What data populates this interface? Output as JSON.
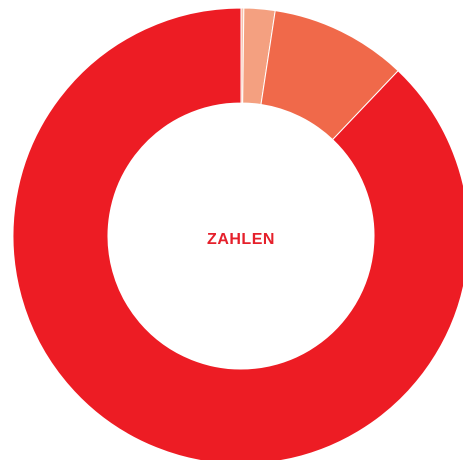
{
  "chart_data": {
    "type": "donut",
    "center_label": "ZAHLEN",
    "values": [
      0.2,
      2.2,
      9.7,
      87.9
    ],
    "colors": [
      "#f8c2ae",
      "#f4a080",
      "#f0694a",
      "#ed1c24"
    ],
    "label_color": "#e5202b"
  }
}
